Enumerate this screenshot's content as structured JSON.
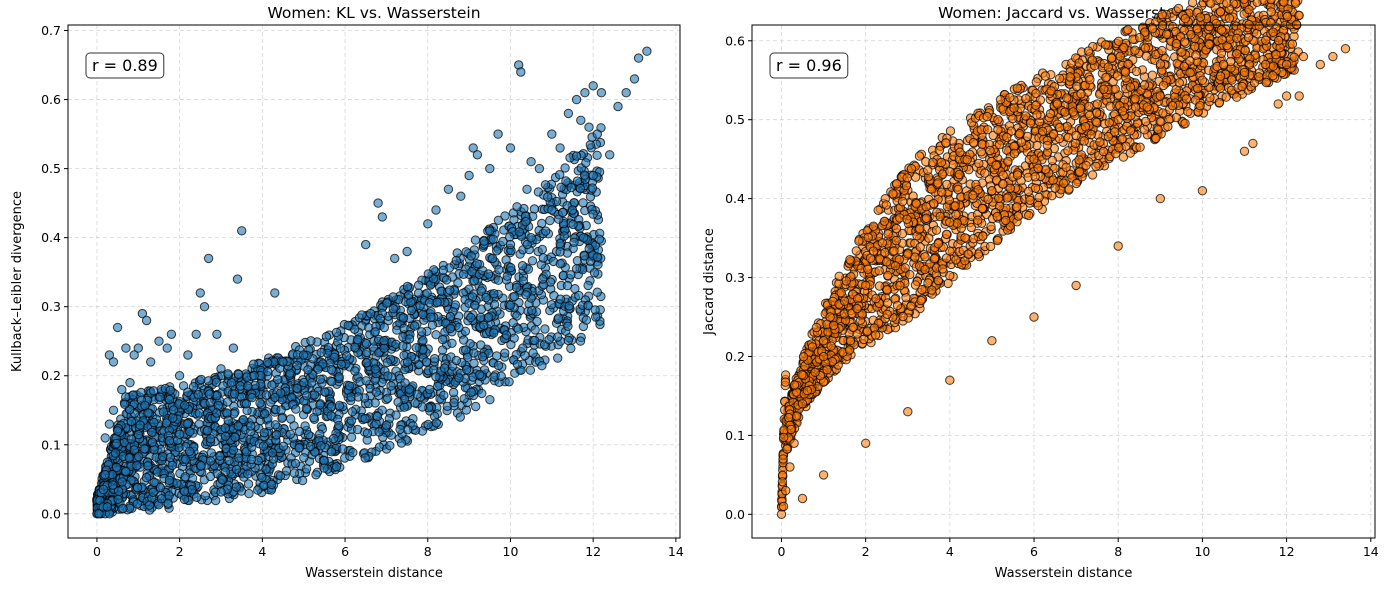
{
  "chart_data": [
    {
      "type": "scatter",
      "title": "Women: KL vs. Wasserstein",
      "xlabel": "Wasserstein distance",
      "ylabel": "Kullback–Leibler divergence",
      "xlim": [
        -0.7,
        14.1
      ],
      "ylim": [
        -0.035,
        0.708
      ],
      "xticks": [
        0,
        2,
        4,
        6,
        8,
        10,
        12,
        14
      ],
      "yticks": [
        0.0,
        0.1,
        0.2,
        0.3,
        0.4,
        0.5,
        0.6,
        0.7
      ],
      "grid": true,
      "annotation": "r = 0.89",
      "annotation_position": "top-left",
      "marker_color": "#1f77b4",
      "edge_color": "#000000",
      "alpha": 0.6,
      "series": [
        {
          "points": [
            [
              0.0,
              0.0
            ],
            [
              0.1,
              0.0
            ],
            [
              0.2,
              0.0
            ],
            [
              0.3,
              0.0
            ],
            [
              0.05,
              0.0
            ],
            [
              0.15,
              0.01
            ],
            [
              0.25,
              0.01
            ],
            [
              0.2,
              0.11
            ],
            [
              0.3,
              0.13
            ],
            [
              0.4,
              0.15
            ],
            [
              0.5,
              0.12
            ],
            [
              0.6,
              0.18
            ],
            [
              0.3,
              0.23
            ],
            [
              0.4,
              0.22
            ],
            [
              0.5,
              0.27
            ],
            [
              0.7,
              0.24
            ],
            [
              0.8,
              0.19
            ],
            [
              0.9,
              0.23
            ],
            [
              1.0,
              0.24
            ],
            [
              1.1,
              0.29
            ],
            [
              1.2,
              0.28
            ],
            [
              1.3,
              0.22
            ],
            [
              1.5,
              0.25
            ],
            [
              1.7,
              0.24
            ],
            [
              1.8,
              0.26
            ],
            [
              2.0,
              0.2
            ],
            [
              2.2,
              0.23
            ],
            [
              2.4,
              0.26
            ],
            [
              2.5,
              0.32
            ],
            [
              2.7,
              0.37
            ],
            [
              2.6,
              0.3
            ],
            [
              2.9,
              0.26
            ],
            [
              3.3,
              0.24
            ],
            [
              3.4,
              0.34
            ],
            [
              3.5,
              0.41
            ],
            [
              4.3,
              0.32
            ],
            [
              3.0,
              0.21
            ],
            [
              3.8,
              0.2
            ],
            [
              4.5,
              0.22
            ],
            [
              5.0,
              0.23
            ],
            [
              6.5,
              0.39
            ],
            [
              6.8,
              0.45
            ],
            [
              6.9,
              0.43
            ],
            [
              7.2,
              0.37
            ],
            [
              7.5,
              0.38
            ],
            [
              8.0,
              0.42
            ],
            [
              8.2,
              0.44
            ],
            [
              8.5,
              0.47
            ],
            [
              8.8,
              0.46
            ],
            [
              9.0,
              0.49
            ],
            [
              9.1,
              0.53
            ],
            [
              9.2,
              0.52
            ],
            [
              9.5,
              0.5
            ],
            [
              9.7,
              0.55
            ],
            [
              10.0,
              0.53
            ],
            [
              10.2,
              0.65
            ],
            [
              10.25,
              0.64
            ],
            [
              10.4,
              0.47
            ],
            [
              10.5,
              0.51
            ],
            [
              10.7,
              0.5
            ],
            [
              11.0,
              0.55
            ],
            [
              11.2,
              0.53
            ],
            [
              11.4,
              0.58
            ],
            [
              11.6,
              0.6
            ],
            [
              11.7,
              0.57
            ],
            [
              11.8,
              0.61
            ],
            [
              11.9,
              0.56
            ],
            [
              12.0,
              0.62
            ],
            [
              12.1,
              0.55
            ],
            [
              12.2,
              0.61
            ],
            [
              12.4,
              0.52
            ],
            [
              12.6,
              0.59
            ],
            [
              12.8,
              0.61
            ],
            [
              13.0,
              0.63
            ],
            [
              13.1,
              0.66
            ],
            [
              13.3,
              0.67
            ],
            [
              12.0,
              0.49
            ],
            [
              11.5,
              0.44
            ],
            [
              11.0,
              0.44
            ],
            [
              10.5,
              0.4
            ],
            [
              10.0,
              0.39
            ],
            [
              9.5,
              0.41
            ]
          ]
        }
      ]
    },
    {
      "type": "scatter",
      "title": "Women: Jaccard vs. Wasserstein",
      "xlabel": "Wasserstein distance",
      "ylabel": "Jaccard distance",
      "xlim": [
        -0.7,
        14.1
      ],
      "ylim": [
        -0.03,
        0.62
      ],
      "xticks": [
        0,
        2,
        4,
        6,
        8,
        10,
        12,
        14
      ],
      "yticks": [
        0.0,
        0.1,
        0.2,
        0.3,
        0.4,
        0.5,
        0.6
      ],
      "grid": true,
      "annotation": "r = 0.96",
      "annotation_position": "top-left",
      "marker_color": "#ff7f0e",
      "edge_color": "#000000",
      "alpha": 0.6,
      "series": [
        {
          "points": [
            [
              0.0,
              0.0
            ],
            [
              0.05,
              0.01
            ],
            [
              0.1,
              0.03
            ],
            [
              0.2,
              0.06
            ],
            [
              0.3,
              0.09
            ],
            [
              0.5,
              0.14
            ],
            [
              0.8,
              0.18
            ],
            [
              1.0,
              0.22
            ],
            [
              1.5,
              0.27
            ],
            [
              2.0,
              0.29
            ],
            [
              2.5,
              0.32
            ],
            [
              3.0,
              0.33
            ],
            [
              3.5,
              0.35
            ],
            [
              4.0,
              0.37
            ],
            [
              5.0,
              0.41
            ],
            [
              6.0,
              0.45
            ],
            [
              7.0,
              0.48
            ],
            [
              8.0,
              0.5
            ],
            [
              9.0,
              0.53
            ],
            [
              10.0,
              0.55
            ],
            [
              10.5,
              0.57
            ],
            [
              11.0,
              0.56
            ],
            [
              11.5,
              0.57
            ],
            [
              12.0,
              0.57
            ],
            [
              12.4,
              0.58
            ],
            [
              12.8,
              0.57
            ],
            [
              13.1,
              0.58
            ],
            [
              13.4,
              0.59
            ],
            [
              11.8,
              0.52
            ],
            [
              12.0,
              0.53
            ],
            [
              12.3,
              0.53
            ],
            [
              11.2,
              0.47
            ],
            [
              11.0,
              0.46
            ],
            [
              10.0,
              0.41
            ],
            [
              9.0,
              0.4
            ],
            [
              8.0,
              0.34
            ],
            [
              7.0,
              0.29
            ],
            [
              6.0,
              0.25
            ],
            [
              5.0,
              0.22
            ],
            [
              4.0,
              0.17
            ],
            [
              3.0,
              0.13
            ],
            [
              2.0,
              0.09
            ],
            [
              1.0,
              0.05
            ],
            [
              0.5,
              0.02
            ]
          ]
        }
      ]
    }
  ]
}
